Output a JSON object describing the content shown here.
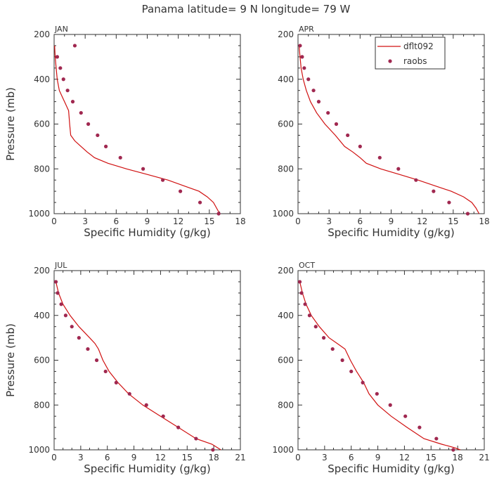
{
  "title": "Panama  latitude= 9 N longitude= 79 W",
  "legend": {
    "model": "dflt092",
    "obs": "raobs"
  },
  "colors": {
    "model": "#d01010",
    "obs": "#a02850",
    "axis": "#333333"
  },
  "chart_data": [
    {
      "type": "line",
      "panel": "JAN",
      "xlabel": "Specific Humidity (g/kg)",
      "ylabel": "Pressure (mb)",
      "xlim": [
        0,
        18
      ],
      "xticks": [
        0,
        3,
        6,
        9,
        12,
        15,
        18
      ],
      "ylim": [
        1000,
        200
      ],
      "yticks": [
        200,
        400,
        600,
        800,
        1000
      ],
      "model": {
        "name": "dflt092",
        "x": [
          0.05,
          0.1,
          0.2,
          0.3,
          0.5,
          0.8,
          1.1,
          1.4,
          1.5,
          1.6,
          2.0,
          2.6,
          3.2,
          3.9,
          5.2,
          7.0,
          9.0,
          11.0,
          12.5,
          14.0,
          14.8,
          15.4,
          15.7,
          16.0
        ],
        "y": [
          250,
          300,
          350,
          400,
          450,
          480,
          510,
          540,
          600,
          650,
          675,
          700,
          725,
          750,
          775,
          800,
          825,
          850,
          875,
          900,
          925,
          950,
          975,
          1000
        ]
      },
      "obs": {
        "name": "raobs",
        "x": [
          2.0,
          0.3,
          0.6,
          0.9,
          1.3,
          1.8,
          2.6,
          3.3,
          4.2,
          5.0,
          6.4,
          8.6,
          10.5,
          12.2,
          14.1,
          15.9
        ],
        "y": [
          250,
          300,
          350,
          400,
          450,
          500,
          550,
          600,
          650,
          700,
          750,
          800,
          850,
          900,
          950,
          1000
        ]
      }
    },
    {
      "type": "line",
      "panel": "APR",
      "xlabel": "Specific Humidity (g/kg)",
      "ylabel": "",
      "xlim": [
        0,
        18
      ],
      "xticks": [
        0,
        3,
        6,
        9,
        12,
        15,
        18
      ],
      "ylim": [
        1000,
        200
      ],
      "yticks": [
        200,
        400,
        600,
        800,
        1000
      ],
      "model": {
        "name": "dflt092",
        "x": [
          0.1,
          0.2,
          0.3,
          0.5,
          0.8,
          1.2,
          1.8,
          2.6,
          3.6,
          4.5,
          5.3,
          6.0,
          6.6,
          8.0,
          9.8,
          11.6,
          13.2,
          14.8,
          16.0,
          16.8,
          17.2,
          17.5
        ],
        "y": [
          250,
          300,
          350,
          400,
          450,
          500,
          550,
          600,
          650,
          700,
          725,
          750,
          775,
          800,
          825,
          850,
          875,
          900,
          925,
          950,
          975,
          1000
        ]
      },
      "obs": {
        "name": "raobs",
        "x": [
          0.2,
          0.4,
          0.6,
          1.0,
          1.5,
          2.0,
          2.9,
          3.7,
          4.8,
          6.0,
          7.9,
          9.7,
          11.4,
          13.1,
          14.6,
          16.4
        ],
        "y": [
          250,
          300,
          350,
          400,
          450,
          500,
          550,
          600,
          650,
          700,
          750,
          800,
          850,
          900,
          950,
          1000
        ]
      }
    },
    {
      "type": "line",
      "panel": "JUL",
      "xlabel": "Specific Humidity (g/kg)",
      "ylabel": "Pressure (mb)",
      "xlim": [
        0,
        21
      ],
      "xticks": [
        0,
        3,
        6,
        9,
        12,
        15,
        18,
        21
      ],
      "ylim": [
        1000,
        200
      ],
      "yticks": [
        200,
        400,
        600,
        800,
        1000
      ],
      "model": {
        "name": "dflt092",
        "x": [
          0.2,
          0.5,
          1.0,
          1.8,
          2.8,
          4.0,
          4.6,
          5.0,
          5.5,
          6.2,
          7.2,
          8.4,
          10.0,
          12.0,
          14.0,
          16.0,
          17.8,
          18.8
        ],
        "y": [
          250,
          300,
          350,
          400,
          450,
          500,
          525,
          550,
          600,
          650,
          700,
          750,
          800,
          850,
          900,
          950,
          975,
          1000
        ]
      },
      "obs": {
        "name": "raobs",
        "x": [
          0.2,
          0.4,
          0.8,
          1.3,
          2.0,
          2.8,
          3.8,
          4.8,
          5.8,
          7.0,
          8.5,
          10.4,
          12.3,
          14.0,
          16.0,
          17.9
        ],
        "y": [
          250,
          300,
          350,
          400,
          450,
          500,
          550,
          600,
          650,
          700,
          750,
          800,
          850,
          900,
          950,
          1000
        ]
      }
    },
    {
      "type": "line",
      "panel": "OCT",
      "xlabel": "Specific Humidity (g/kg)",
      "ylabel": "",
      "xlim": [
        0,
        21
      ],
      "xticks": [
        0,
        3,
        6,
        9,
        12,
        15,
        18,
        21
      ],
      "ylim": [
        1000,
        200
      ],
      "yticks": [
        200,
        400,
        600,
        800,
        1000
      ],
      "model": {
        "name": "dflt092",
        "x": [
          0.2,
          0.5,
          0.9,
          1.5,
          2.4,
          3.5,
          4.6,
          5.3,
          5.9,
          6.6,
          7.4,
          8.0,
          9.0,
          10.5,
          12.3,
          14.2,
          16.2,
          17.6,
          18.3
        ],
        "y": [
          250,
          300,
          350,
          400,
          450,
          500,
          530,
          550,
          600,
          650,
          700,
          750,
          800,
          850,
          900,
          950,
          975,
          990,
          1000
        ]
      },
      "obs": {
        "name": "raobs",
        "x": [
          0.2,
          0.4,
          0.8,
          1.3,
          2.0,
          2.9,
          3.9,
          5.0,
          6.0,
          7.3,
          8.9,
          10.4,
          12.1,
          13.7,
          15.6,
          17.5
        ],
        "y": [
          250,
          300,
          350,
          400,
          450,
          500,
          550,
          600,
          650,
          700,
          750,
          800,
          850,
          900,
          950,
          1000
        ]
      }
    }
  ]
}
